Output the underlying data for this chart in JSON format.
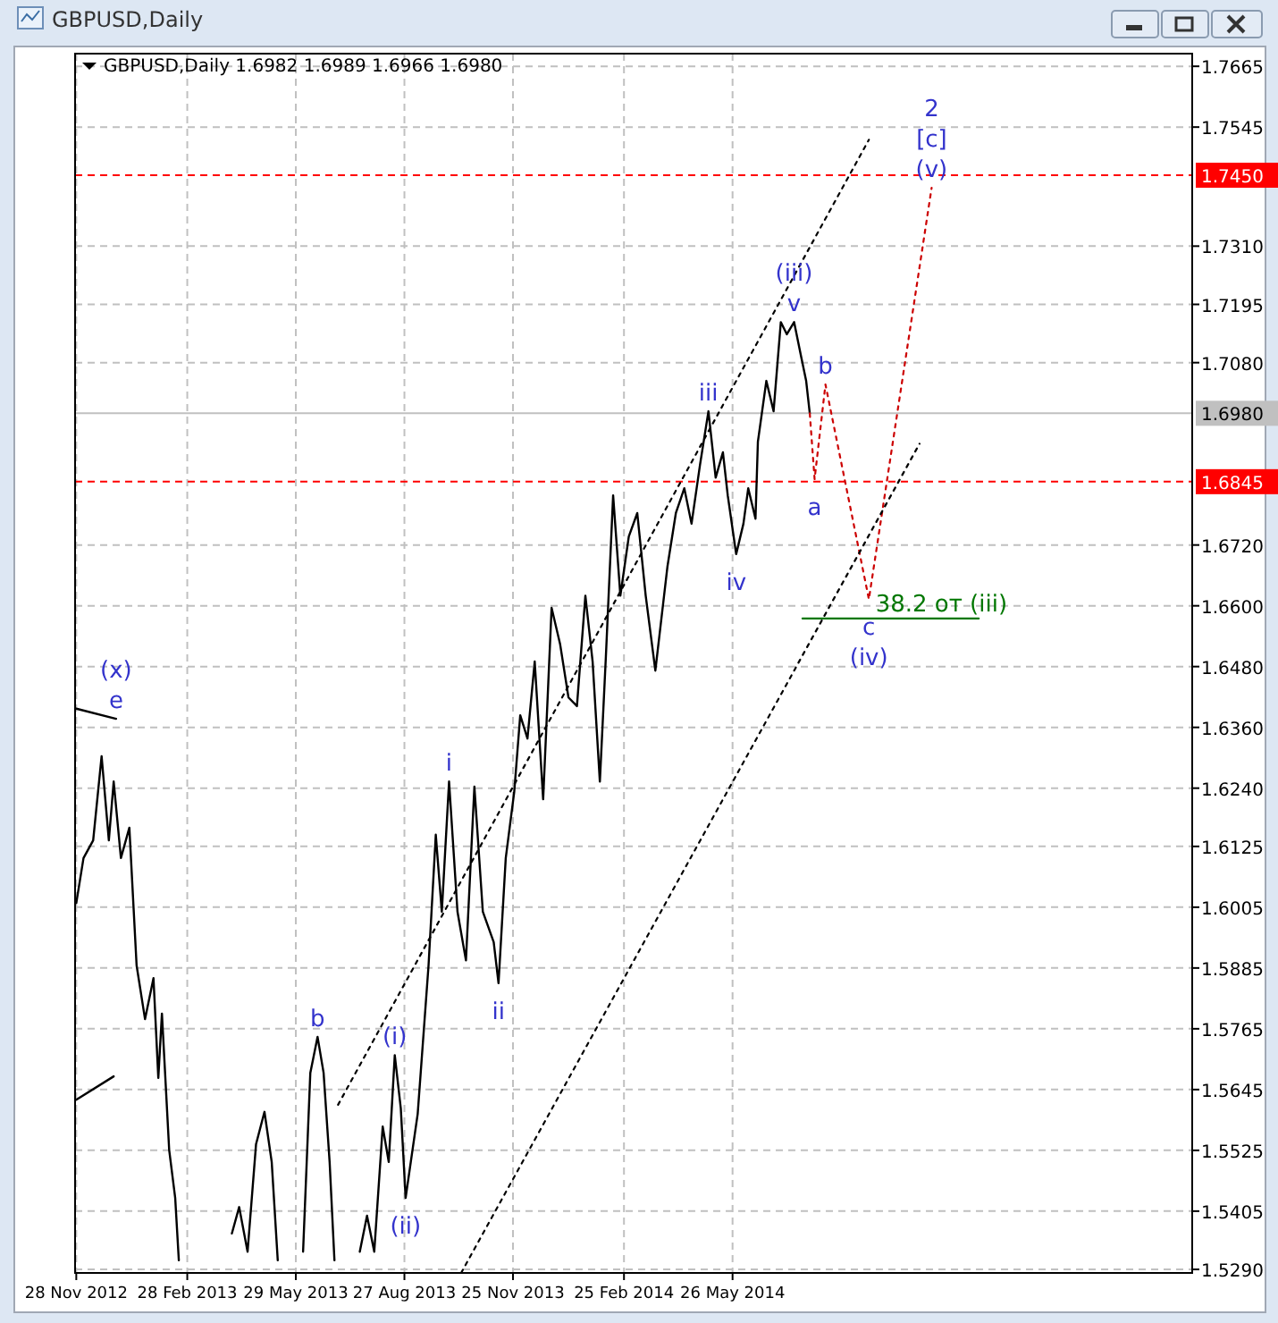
{
  "chart_data": {
    "type": "line",
    "title": "GBPUSD,Daily",
    "subtitle": "GBPUSD,Daily  1.6982 1.6989 1.6966 1.6980",
    "xlim": [
      "2012-11-27",
      "2015-06-11"
    ],
    "xticks": [
      {
        "value": "2012-11-28",
        "label": "28 Nov 2012"
      },
      {
        "value": "2013-02-28",
        "label": "28 Feb 2013"
      },
      {
        "value": "2013-05-29",
        "label": "29 May 2013"
      },
      {
        "value": "2013-08-27",
        "label": "27 Aug 2013"
      },
      {
        "value": "2013-11-25",
        "label": "25 Nov 2013"
      },
      {
        "value": "2014-02-25",
        "label": "25 Feb 2014"
      },
      {
        "value": "2014-05-26",
        "label": "26 May 2014"
      }
    ],
    "ylim": [
      1.5283,
      1.769
    ],
    "yticks": [
      1.7665,
      1.7545,
      {
        "value": 1.731,
        "label": "1.7310"
      },
      1.7195,
      {
        "value": 1.708,
        "label": "1.7080"
      },
      {
        "value": 1.672,
        "label": "1.6720"
      },
      {
        "value": 1.66,
        "label": "1.6600"
      },
      {
        "value": 1.648,
        "label": "1.6480"
      },
      {
        "value": 1.636,
        "label": "1.6360"
      },
      {
        "value": 1.624,
        "label": "1.6240"
      },
      1.6125,
      1.6005,
      1.5885,
      1.5765,
      1.5645,
      1.5525,
      1.5405,
      {
        "value": 1.529,
        "label": "1.5290"
      }
    ],
    "grid": true,
    "series": [
      {
        "color": "#000000",
        "line_style": "solid",
        "x": [
          "2012-11-28",
          "2012-12-04",
          "2012-12-12",
          "2012-12-19",
          "2012-12-25",
          "2012-12-29",
          "2013-01-04",
          "2013-01-11",
          "2013-01-17",
          "2013-01-24",
          "2013-01-31",
          "2013-02-04",
          "2013-02-07",
          "2013-02-13",
          "2013-02-18",
          "2013-02-21",
          "2013-03-20",
          "2013-04-06",
          "2013-04-12",
          "2013-04-19",
          "2013-04-26",
          "2013-05-03",
          "2013-05-09",
          "2013-05-14",
          "2013-05-25",
          "2013-06-04",
          "2013-06-10",
          "2013-06-16",
          "2013-06-21",
          "2013-06-26",
          "2013-06-30",
          "2013-07-10",
          "2013-07-21",
          "2013-07-27",
          "2013-08-02",
          "2013-08-09",
          "2013-08-14",
          "2013-08-19",
          "2013-08-24",
          "2013-08-28",
          "2013-09-07",
          "2013-09-16",
          "2013-09-22",
          "2013-09-27",
          "2013-10-03",
          "2013-10-10",
          "2013-10-17",
          "2013-10-24",
          "2013-10-31",
          "2013-11-09",
          "2013-11-13",
          "2013-11-19",
          "2013-11-26",
          "2013-12-01",
          "2013-12-07",
          "2013-12-13",
          "2013-12-20",
          "2013-12-27",
          "2014-01-03",
          "2014-01-10",
          "2014-01-17",
          "2014-01-24",
          "2014-01-30",
          "2014-02-05",
          "2014-02-10",
          "2014-02-16",
          "2014-02-22",
          "2014-03-01",
          "2014-03-08",
          "2014-03-15",
          "2014-03-23",
          "2014-04-02",
          "2014-04-09",
          "2014-04-16",
          "2014-04-22",
          "2014-04-29",
          "2014-05-06",
          "2014-05-12",
          "2014-05-18",
          "2014-05-22",
          "2014-05-29",
          "2014-06-04",
          "2014-06-08",
          "2014-06-14",
          "2014-06-16",
          "2014-06-23",
          "2014-06-29",
          "2014-07-05",
          "2014-07-10",
          "2014-07-16",
          "2014-07-22",
          "2014-07-26",
          "2014-07-29"
        ],
        "values": [
          1.6013,
          1.6102,
          1.6137,
          1.6303,
          1.6137,
          1.6253,
          1.6102,
          1.6162,
          1.589,
          1.5784,
          1.5865,
          1.5668,
          1.5795,
          1.5526,
          1.5431,
          1.5308,
          null,
          1.5361,
          1.5413,
          1.5325,
          1.5537,
          1.5601,
          1.5502,
          1.5308,
          null,
          1.5325,
          1.5678,
          1.5749,
          1.5678,
          1.5502,
          1.5308,
          null,
          1.5325,
          1.5396,
          1.5325,
          1.5572,
          1.5502,
          1.5713,
          1.5608,
          1.5431,
          1.5597,
          1.589,
          1.6148,
          1.5996,
          1.6253,
          1.5996,
          1.59,
          1.6243,
          1.5996,
          1.5936,
          1.5855,
          1.6102,
          1.6232,
          1.6384,
          1.6338,
          1.649,
          1.6218,
          1.6596,
          1.6525,
          1.6419,
          1.6402,
          1.662,
          1.649,
          1.6253,
          1.65,
          1.6818,
          1.662,
          1.6737,
          1.6783,
          1.662,
          1.6472,
          1.6677,
          1.6783,
          1.6832,
          1.6762,
          1.6878,
          1.6984,
          1.6853,
          1.6903,
          1.6818,
          1.6702,
          1.6762,
          1.6832,
          1.6772,
          1.6924,
          1.7044,
          1.6984,
          1.716,
          1.7136,
          1.716,
          1.709,
          1.7044,
          1.698
        ]
      },
      {
        "color": "#cc0000",
        "line_style": "dotted",
        "x": [
          "2014-07-29",
          "2014-08-02",
          "2014-08-11",
          "2014-09-16",
          "2014-11-07"
        ],
        "values": [
          1.698,
          1.685,
          1.7037,
          1.6613,
          1.7425
        ]
      },
      {
        "color": "#000000",
        "line_style": "dotted",
        "x": [
          "2013-07-03",
          "2014-09-16"
        ],
        "values": [
          1.5615,
          1.752
        ]
      },
      {
        "color": "#000000",
        "line_style": "dotted",
        "x": [
          "2013-10-13",
          "2014-10-28"
        ],
        "values": [
          1.5283,
          1.692
        ]
      },
      {
        "color": "#000000",
        "line_style": "solid",
        "x": [
          "2012-11-28",
          "2012-12-31"
        ],
        "values": [
          1.6397,
          1.6377
        ]
      },
      {
        "color": "#000000",
        "line_style": "solid",
        "x": [
          "2012-11-28",
          "2012-12-29"
        ],
        "values": [
          1.5625,
          1.5671
        ]
      },
      {
        "name": "38.2 от (iii)",
        "color": "#007700",
        "line_style": "solid",
        "x": [
          "2014-07-23",
          "2014-12-16"
        ],
        "values": [
          1.6575,
          1.6575
        ]
      }
    ],
    "ref_lines": [
      {
        "axis": "y",
        "value": 1.745,
        "label": "1.7450",
        "color": "#ff0000",
        "line_style": "dashed"
      },
      {
        "axis": "y",
        "value": 1.698,
        "label": "1.6980",
        "color": "#c0c0c0",
        "line_style": "solid"
      },
      {
        "axis": "y",
        "value": 1.6845,
        "label": "1.6845",
        "color": "#ff0000",
        "line_style": "dashed"
      }
    ],
    "annotations": [
      {
        "text": "(v)",
        "x": "2014-11-07",
        "y": 1.7425
      },
      {
        "text": "[c]",
        "x": "2014-11-07",
        "y": 1.7425
      },
      {
        "text": "2",
        "x": "2014-11-07",
        "y": 1.7425
      },
      {
        "text": "v",
        "x": "2014-07-16",
        "y": 1.716
      },
      {
        "text": "(iii)",
        "x": "2014-07-16",
        "y": 1.716
      },
      {
        "text": "iii",
        "x": "2014-05-06",
        "y": 1.6984
      },
      {
        "text": "b",
        "x": "2014-08-11",
        "y": 1.7037
      },
      {
        "text": "a",
        "x": "2014-08-02",
        "y": 1.685
      },
      {
        "text": "iv",
        "x": "2014-05-29",
        "y": 1.6702
      },
      {
        "text": "c",
        "x": "2014-09-16",
        "y": 1.6613
      },
      {
        "text": "(iv)",
        "x": "2014-09-16",
        "y": 1.6613
      },
      {
        "text": "e",
        "x": "2012-12-31",
        "y": 1.6377
      },
      {
        "text": "(x)",
        "x": "2012-12-31",
        "y": 1.6377
      },
      {
        "text": "i",
        "x": "2013-10-03",
        "y": 1.6253
      },
      {
        "text": "b",
        "x": "2013-06-16",
        "y": 1.5749
      },
      {
        "text": "(i)",
        "x": "2013-08-19",
        "y": 1.5713
      },
      {
        "text": "ii",
        "x": "2013-11-13",
        "y": 1.5855
      },
      {
        "text": "(ii)",
        "x": "2013-08-28",
        "y": 1.5431
      }
    ]
  }
}
